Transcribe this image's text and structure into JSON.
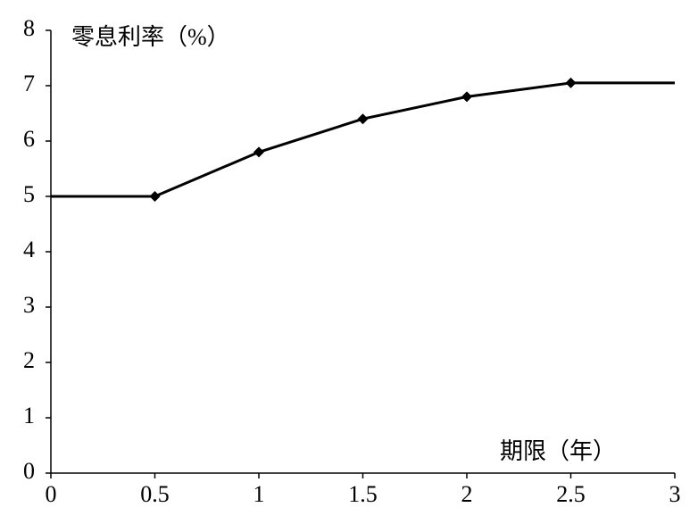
{
  "chart_data": {
    "type": "line",
    "y_label": "零息利率（%）",
    "x_label": "期限（年）",
    "x": [
      0,
      0.5,
      1,
      1.5,
      2,
      2.5,
      3
    ],
    "series": [
      {
        "color": "#000000",
        "values": [
          5.0,
          5.0,
          5.8,
          6.4,
          6.8,
          7.05,
          7.05
        ],
        "markers": [
          false,
          true,
          true,
          true,
          true,
          true,
          false
        ],
        "marker": "diamond"
      }
    ],
    "xlim": [
      0,
      3
    ],
    "xticks": [
      0,
      0.5,
      1,
      1.5,
      2,
      2.5,
      3
    ],
    "ylim": [
      0,
      8
    ],
    "yticks": [
      0,
      1,
      2,
      3,
      4,
      5,
      6,
      7,
      8
    ],
    "grid": false
  }
}
